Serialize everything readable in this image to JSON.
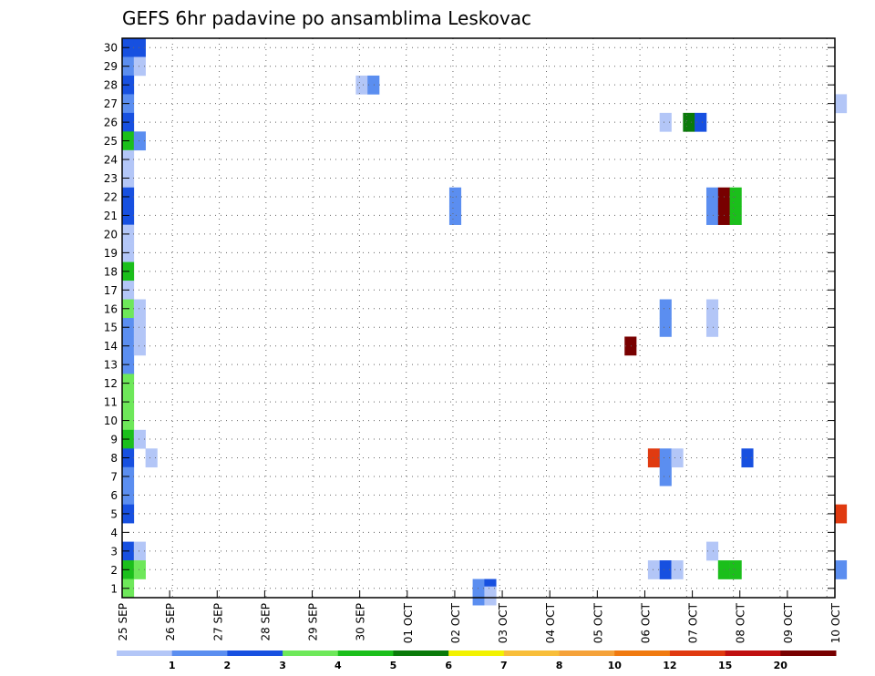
{
  "chart_data": {
    "type": "heatmap",
    "title": "GEFS 6hr padavine po ansamblima Leskovac",
    "xlabel": "",
    "ylabel": "",
    "x_ticks": [
      "25 SEP",
      "26 SEP",
      "27 SEP",
      "28 SEP",
      "29 SEP",
      "30 SEP",
      "01 OCT",
      "02 OCT",
      "03 OCT",
      "04 OCT",
      "05 OCT",
      "06 OCT",
      "07 OCT",
      "08 OCT",
      "09 OCT",
      "10 OCT"
    ],
    "y_ticks": [
      "1",
      "2",
      "3",
      "4",
      "5",
      "6",
      "7",
      "8",
      "9",
      "10",
      "11",
      "12",
      "13",
      "14",
      "15",
      "16",
      "17",
      "18",
      "19",
      "20",
      "21",
      "22",
      "23",
      "24",
      "25",
      "26",
      "27",
      "28",
      "29",
      "30"
    ],
    "xlim_steps": [
      0,
      61
    ],
    "ylim": [
      0.5,
      30.5
    ],
    "grid": true,
    "legend": {
      "placement": "bottom",
      "levels": [
        "1",
        "2",
        "3",
        "4",
        "5",
        "6",
        "7",
        "8",
        "10",
        "12",
        "15",
        "20"
      ],
      "colors": [
        "#b3c6f7",
        "#5b8ef0",
        "#1750e0",
        "#6ee85a",
        "#1bbf1b",
        "#0a7a0a",
        "#f2f200",
        "#f8be3a",
        "#f5a23a",
        "#f07a10",
        "#e03a10",
        "#c01010",
        "#780000"
      ]
    },
    "cells": [
      {
        "step": 0,
        "member": 30,
        "level": 3
      },
      {
        "step": 1,
        "member": 30,
        "level": 3
      },
      {
        "step": 0,
        "member": 29,
        "level": 2
      },
      {
        "step": 1,
        "member": 29,
        "level": 1
      },
      {
        "step": 0,
        "member": 28,
        "level": 3
      },
      {
        "step": 0,
        "member": 27,
        "level": 2
      },
      {
        "step": 0,
        "member": 26,
        "level": 3
      },
      {
        "step": 0,
        "member": 25,
        "level": 5
      },
      {
        "step": 1,
        "member": 25,
        "level": 2
      },
      {
        "step": 0,
        "member": 24,
        "level": 1
      },
      {
        "step": 0,
        "member": 23,
        "level": 1
      },
      {
        "step": 0,
        "member": 22,
        "level": 3
      },
      {
        "step": 0,
        "member": 21,
        "level": 3
      },
      {
        "step": 0,
        "member": 20,
        "level": 1
      },
      {
        "step": 0,
        "member": 19,
        "level": 1
      },
      {
        "step": 0,
        "member": 18,
        "level": 5
      },
      {
        "step": 0,
        "member": 17,
        "level": 1
      },
      {
        "step": 0,
        "member": 16,
        "level": 4
      },
      {
        "step": 1,
        "member": 16,
        "level": 1
      },
      {
        "step": 0,
        "member": 15,
        "level": 2
      },
      {
        "step": 1,
        "member": 15,
        "level": 1
      },
      {
        "step": 0,
        "member": 14,
        "level": 2
      },
      {
        "step": 1,
        "member": 14,
        "level": 1
      },
      {
        "step": 0,
        "member": 13,
        "level": 2
      },
      {
        "step": 0,
        "member": 12,
        "level": 4
      },
      {
        "step": 0,
        "member": 11,
        "level": 4
      },
      {
        "step": 0,
        "member": 10,
        "level": 4
      },
      {
        "step": 0,
        "member": 9,
        "level": 5
      },
      {
        "step": 1,
        "member": 9,
        "level": 1
      },
      {
        "step": 0,
        "member": 8,
        "level": 3
      },
      {
        "step": 2,
        "member": 8,
        "level": 1
      },
      {
        "step": 0,
        "member": 7,
        "level": 2
      },
      {
        "step": 0,
        "member": 6,
        "level": 2
      },
      {
        "step": 0,
        "member": 5,
        "level": 3
      },
      {
        "step": 0,
        "member": 3,
        "level": 3
      },
      {
        "step": 1,
        "member": 3,
        "level": 1
      },
      {
        "step": 0,
        "member": 2,
        "level": 5
      },
      {
        "step": 1,
        "member": 2,
        "level": 4
      },
      {
        "step": 0,
        "member": 1,
        "level": 4
      },
      {
        "step": 20,
        "member": 28,
        "level": 1
      },
      {
        "step": 21,
        "member": 28,
        "level": 2
      },
      {
        "step": 28,
        "member": 22,
        "level": 2
      },
      {
        "step": 28,
        "member": 21,
        "level": 2
      },
      {
        "step": 30,
        "member": 1,
        "level": 2
      },
      {
        "step": 31,
        "member": 1,
        "level": 3
      },
      {
        "step": 30,
        "member": 0.6,
        "level": 2
      },
      {
        "step": 31,
        "member": 0.6,
        "level": 1
      },
      {
        "step": 43,
        "member": 14,
        "level": 14
      },
      {
        "step": 46,
        "member": 26,
        "level": 1
      },
      {
        "step": 48,
        "member": 26,
        "level": 6
      },
      {
        "step": 49,
        "member": 26,
        "level": 3
      },
      {
        "step": 46,
        "member": 16,
        "level": 2
      },
      {
        "step": 46,
        "member": 15,
        "level": 2
      },
      {
        "step": 50,
        "member": 16,
        "level": 1
      },
      {
        "step": 50,
        "member": 15,
        "level": 1
      },
      {
        "step": 50,
        "member": 22,
        "level": 2
      },
      {
        "step": 50,
        "member": 21,
        "level": 2
      },
      {
        "step": 51,
        "member": 22,
        "level": 14
      },
      {
        "step": 51,
        "member": 21,
        "level": 14
      },
      {
        "step": 52,
        "member": 22,
        "level": 5
      },
      {
        "step": 52,
        "member": 21,
        "level": 5
      },
      {
        "step": 45,
        "member": 8,
        "level": 11
      },
      {
        "step": 46,
        "member": 8,
        "level": 2
      },
      {
        "step": 47,
        "member": 8,
        "level": 1
      },
      {
        "step": 46,
        "member": 7,
        "level": 2
      },
      {
        "step": 45,
        "member": 2,
        "level": 1
      },
      {
        "step": 46,
        "member": 2,
        "level": 3
      },
      {
        "step": 47,
        "member": 2,
        "level": 1
      },
      {
        "step": 50,
        "member": 3,
        "level": 1
      },
      {
        "step": 51,
        "member": 2,
        "level": 5
      },
      {
        "step": 52,
        "member": 2,
        "level": 5
      },
      {
        "step": 53,
        "member": 8,
        "level": 3
      },
      {
        "step": 61,
        "member": 27,
        "level": 1
      },
      {
        "step": 61,
        "member": 5,
        "level": 11
      },
      {
        "step": 61,
        "member": 2,
        "level": 2
      }
    ]
  }
}
